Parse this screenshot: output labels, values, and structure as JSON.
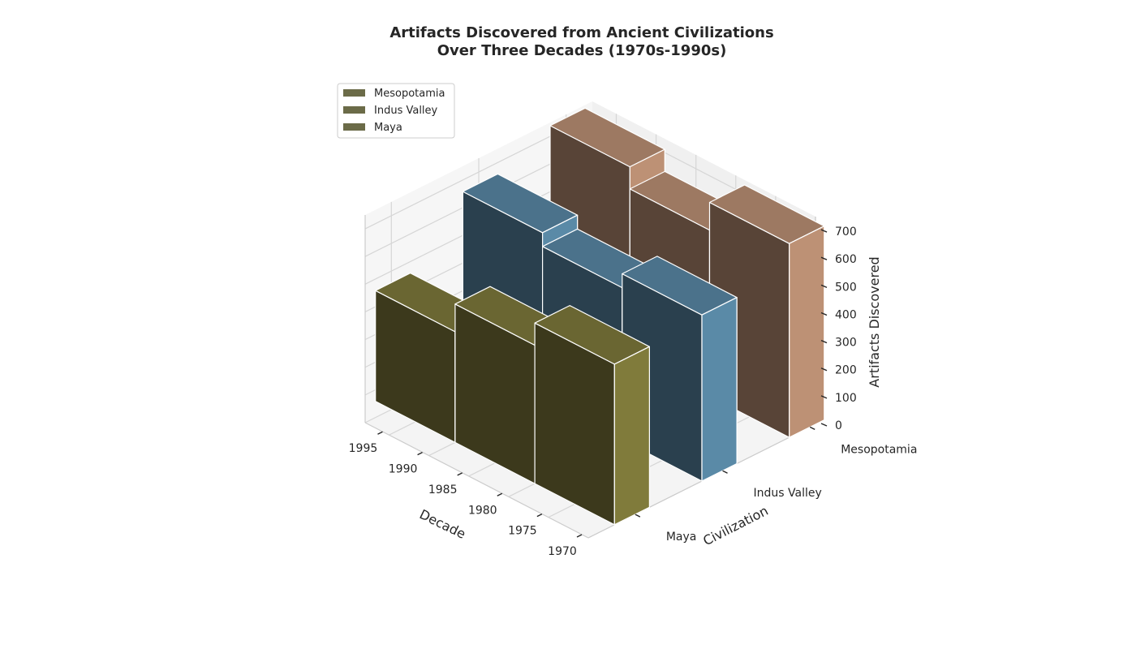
{
  "chart_data": {
    "type": "bar3d",
    "title_lines": [
      "Artifacts Discovered from Ancient Civilizations",
      "Over Three Decades (1970s-1990s)"
    ],
    "xlabel": "Decade",
    "ylabel": "Civilization",
    "zlabel": "Artifacts Discovered",
    "x_ticks": [
      "1970",
      "1975",
      "1980",
      "1985",
      "1990",
      "1995"
    ],
    "y_ticks": [
      "Maya",
      "Indus Valley",
      "Mesopotamia"
    ],
    "z_ticks": [
      "0",
      "100",
      "200",
      "300",
      "400",
      "500",
      "600",
      "700"
    ],
    "zlim": [
      0,
      750
    ],
    "categories": [
      "1970s",
      "1980s",
      "1990s"
    ],
    "series": [
      {
        "name": "Mesopotamia",
        "values": [
          700,
          600,
          680
        ]
      },
      {
        "name": "Indus Valley",
        "values": [
          600,
          550,
          600
        ]
      },
      {
        "name": "Maya",
        "values": [
          580,
          500,
          400
        ]
      }
    ],
    "colors": {
      "Mesopotamia": "#c4977a",
      "Indus Valley": "#5e8fae",
      "Maya": "#857f3e",
      "legend_swatch": "#6b6b48"
    },
    "legend_position": "top-left",
    "grid": true
  }
}
